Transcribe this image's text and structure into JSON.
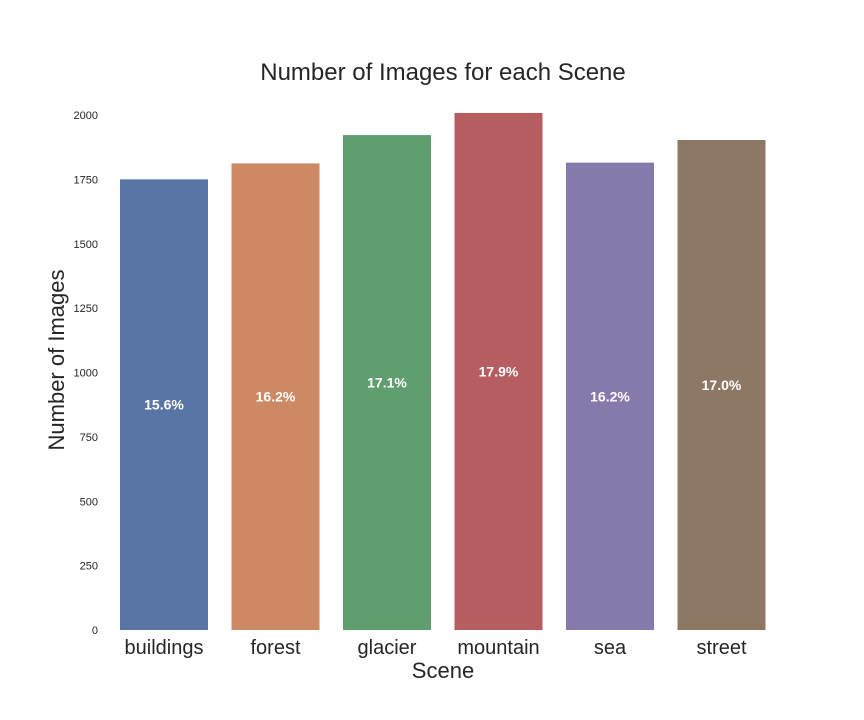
{
  "chart_data": {
    "type": "bar",
    "title": "Number of Images for each Scene",
    "xlabel": "Scene",
    "ylabel": "Number of Images",
    "categories": [
      "buildings",
      "forest",
      "glacier",
      "mountain",
      "sea",
      "street"
    ],
    "values": [
      1750,
      1812,
      1922,
      2008,
      1815,
      1903
    ],
    "percent_labels": [
      "15.6%",
      "16.2%",
      "17.1%",
      "17.9%",
      "16.2%",
      "17.0%"
    ],
    "colors": [
      "#5975a4",
      "#cc8963",
      "#5f9e6e",
      "#b55d60",
      "#857aab",
      "#8d7866"
    ],
    "yticks": [
      "0",
      "250",
      "500",
      "750",
      "1000",
      "1250",
      "1500",
      "1750",
      "2000"
    ],
    "ylim": [
      0,
      2000
    ],
    "grid": false
  }
}
